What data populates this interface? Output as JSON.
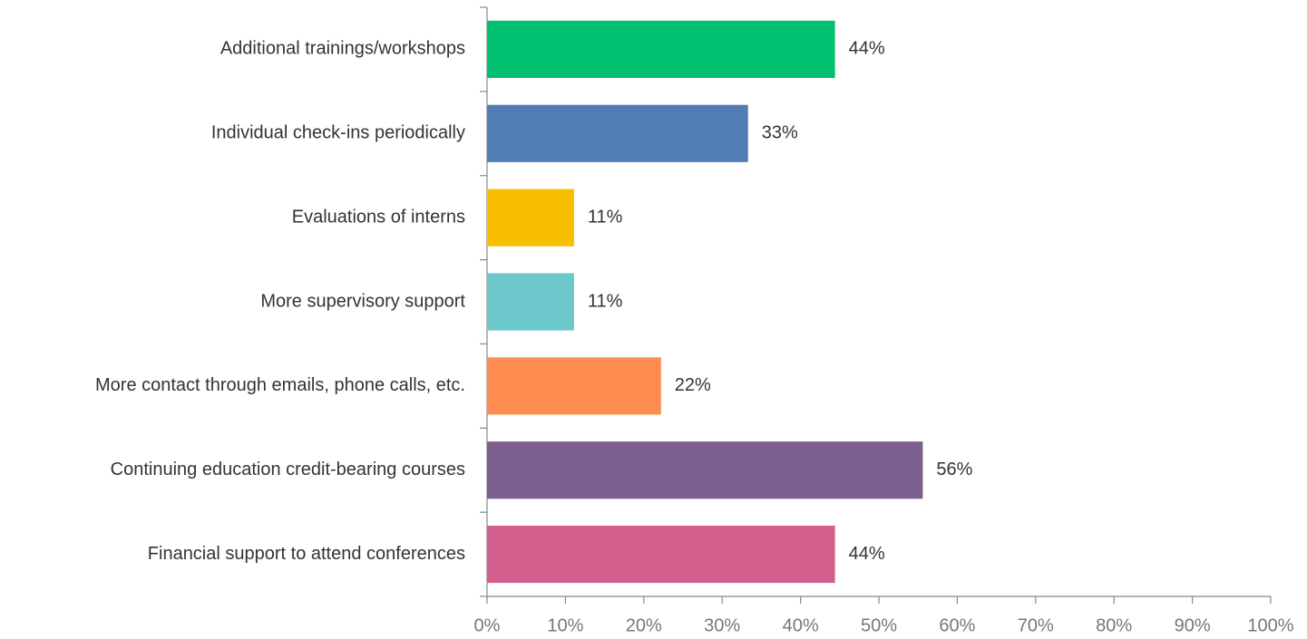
{
  "chart_data": {
    "type": "hbar",
    "categories": [
      "Additional trainings/workshops",
      "Individual check-ins periodically",
      "Evaluations of interns",
      "More supervisory support",
      "More contact through emails, phone calls, etc.",
      "Continuing education credit-bearing courses",
      "Financial support to attend conferences"
    ],
    "values": [
      44.4,
      33.3,
      11.1,
      11.1,
      22.2,
      55.6,
      44.4
    ],
    "value_labels": [
      "44%",
      "33%",
      "11%",
      "11%",
      "22%",
      "56%",
      "44%"
    ],
    "colors": [
      "#00c06f",
      "#4f7db4",
      "#f8be00",
      "#6dc8cc",
      "#ff8c50",
      "#7d5f8f",
      "#d45f8d"
    ],
    "xlim": [
      0,
      100
    ],
    "xticks": [
      {
        "value": 0,
        "label": "0%"
      },
      {
        "value": 10,
        "label": "10%"
      },
      {
        "value": 20,
        "label": "20%"
      },
      {
        "value": 30,
        "label": "30%"
      },
      {
        "value": 40,
        "label": "40%"
      },
      {
        "value": 50,
        "label": "50%"
      },
      {
        "value": 60,
        "label": "60%"
      },
      {
        "value": 70,
        "label": "70%"
      },
      {
        "value": 80,
        "label": "80%"
      },
      {
        "value": 90,
        "label": "90%"
      },
      {
        "value": 100,
        "label": "100%"
      }
    ],
    "grid": false
  }
}
